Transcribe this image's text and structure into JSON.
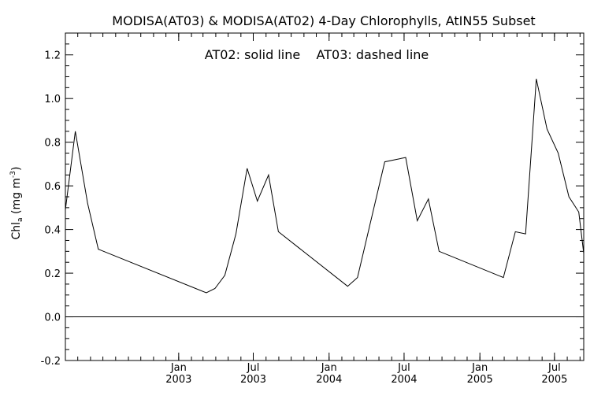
{
  "chart_data": {
    "type": "line",
    "title": "MODISA(AT03) & MODISA(AT02) 4-Day Chlorophylls, AtIN55 Subset",
    "annotation": "AT02: solid line    AT03: dashed line",
    "ylabel": {
      "main": "Chl",
      "sub": "a",
      "units_open": " (mg m",
      "units_sup": "-3",
      "units_close": ")"
    },
    "xlabel": "",
    "ylim": [
      -0.2,
      1.3
    ],
    "xlim": [
      "2002-04-01",
      "2005-09-10"
    ],
    "y_ticks": [
      -0.2,
      0.0,
      0.2,
      0.4,
      0.6,
      0.8,
      1.0,
      1.2
    ],
    "y_tick_labels": [
      "-0.2",
      "0.0",
      "0.2",
      "0.4",
      "0.6",
      "0.8",
      "1.0",
      "1.2"
    ],
    "x_major_ticks": [
      {
        "date": "2003-01-01",
        "month": "Jan",
        "year": "2003"
      },
      {
        "date": "2003-07-01",
        "month": "Jul",
        "year": "2003"
      },
      {
        "date": "2004-01-01",
        "month": "Jan",
        "year": "2004"
      },
      {
        "date": "2004-07-01",
        "month": "Jul",
        "year": "2004"
      },
      {
        "date": "2005-01-01",
        "month": "Jan",
        "year": "2005"
      },
      {
        "date": "2005-07-01",
        "month": "Jul",
        "year": "2005"
      }
    ],
    "x_minor_ticks": [
      "2002-05-01",
      "2002-06-01",
      "2002-07-01",
      "2002-08-01",
      "2002-09-01",
      "2002-10-01",
      "2002-11-01",
      "2002-12-01",
      "2003-01-01",
      "2003-02-01",
      "2003-03-01",
      "2003-04-01",
      "2003-05-01",
      "2003-06-01",
      "2003-07-01",
      "2003-08-01",
      "2003-09-01",
      "2003-10-01",
      "2003-11-01",
      "2003-12-01",
      "2004-01-01",
      "2004-02-01",
      "2004-03-01",
      "2004-04-01",
      "2004-05-01",
      "2004-06-01",
      "2004-07-01",
      "2004-08-01",
      "2004-09-01",
      "2004-10-01",
      "2004-11-01",
      "2004-12-01",
      "2005-01-01",
      "2005-02-01",
      "2005-03-01",
      "2005-04-01",
      "2005-05-01",
      "2005-06-01",
      "2005-07-01",
      "2005-08-01",
      "2005-09-01"
    ],
    "reference_line": {
      "y": 0.0
    },
    "grid": false,
    "series": [
      {
        "name": "AT02",
        "style": "solid",
        "color": "#000000",
        "points": [
          {
            "x": "2002-04-01",
            "y": 0.49
          },
          {
            "x": "2002-04-25",
            "y": 0.85
          },
          {
            "x": "2002-05-25",
            "y": 0.52
          },
          {
            "x": "2002-06-20",
            "y": 0.31
          },
          {
            "x": "2003-03-09",
            "y": 0.11
          },
          {
            "x": "2003-03-30",
            "y": 0.13
          },
          {
            "x": "2003-04-23",
            "y": 0.19
          },
          {
            "x": "2003-05-20",
            "y": 0.38
          },
          {
            "x": "2003-06-16",
            "y": 0.68
          },
          {
            "x": "2003-07-11",
            "y": 0.53
          },
          {
            "x": "2003-08-07",
            "y": 0.65
          },
          {
            "x": "2003-08-31",
            "y": 0.39
          },
          {
            "x": "2004-02-15",
            "y": 0.14
          },
          {
            "x": "2004-03-10",
            "y": 0.18
          },
          {
            "x": "2004-05-15",
            "y": 0.71
          },
          {
            "x": "2004-07-05",
            "y": 0.73
          },
          {
            "x": "2004-08-02",
            "y": 0.44
          },
          {
            "x": "2004-08-29",
            "y": 0.54
          },
          {
            "x": "2004-09-24",
            "y": 0.3
          },
          {
            "x": "2005-02-27",
            "y": 0.18
          },
          {
            "x": "2005-03-28",
            "y": 0.39
          },
          {
            "x": "2005-04-22",
            "y": 0.38
          },
          {
            "x": "2005-05-18",
            "y": 1.09
          },
          {
            "x": "2005-06-13",
            "y": 0.86
          },
          {
            "x": "2005-07-10",
            "y": 0.75
          },
          {
            "x": "2005-08-05",
            "y": 0.55
          },
          {
            "x": "2005-08-29",
            "y": 0.48
          },
          {
            "x": "2005-09-10",
            "y": 0.29
          }
        ]
      }
    ]
  }
}
